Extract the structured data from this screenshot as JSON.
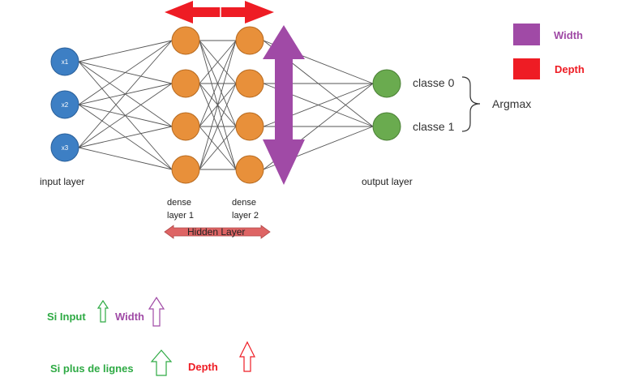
{
  "input_layer": {
    "label": "input layer",
    "nodes": [
      "x1",
      "x2",
      "x3"
    ]
  },
  "dense_layer_1": {
    "label_line1": "dense",
    "label_line2": "layer 1"
  },
  "dense_layer_2": {
    "label_line1": "dense",
    "label_line2": "layer 2"
  },
  "hidden_layer": {
    "label": "Hidden Layer"
  },
  "output_layer": {
    "label": "output layer",
    "classes": [
      "classe 0",
      "classe 1"
    ]
  },
  "argmax_label": "Argmax",
  "legend": {
    "width_label": "Width",
    "depth_label": "Depth"
  },
  "notes": {
    "row1_label": "Si Input",
    "row1_width_label": "Width",
    "row2_label": "Si plus de lignes",
    "row2_depth_label": "Depth"
  },
  "colors": {
    "input_node": "#3d7fc4",
    "dense_node": "#e8903a",
    "output_node": "#6aab4f",
    "width_purple": "#a04aa6",
    "depth_red": "#ee1c24",
    "hidden_arrow": "#de6464",
    "note_green": "#2eaa44",
    "edge": "#555555"
  }
}
